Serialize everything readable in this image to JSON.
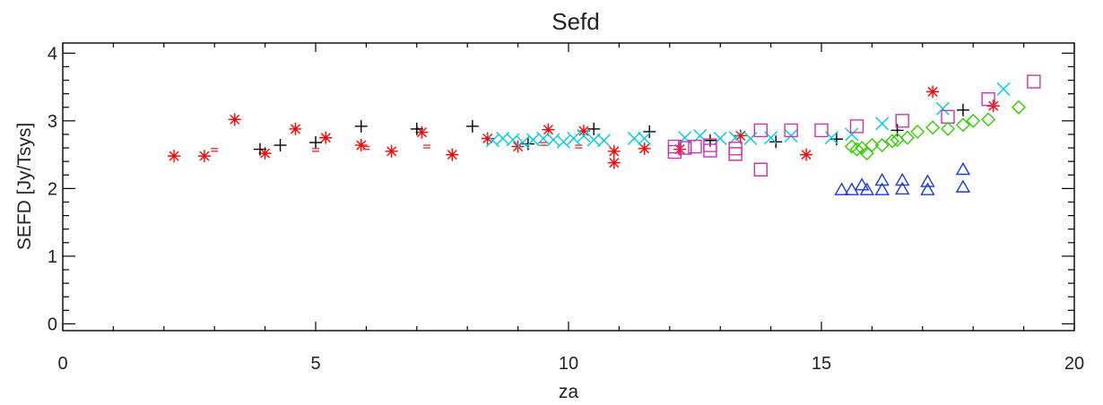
{
  "chart_data": {
    "type": "scatter",
    "title": "Sefd",
    "xlabel": "za",
    "ylabel": "SEFD [Jy/Tsys]",
    "xlim": [
      0,
      20
    ],
    "ylim": [
      -0.1,
      4.15
    ],
    "x_ticks": [
      "0",
      "5",
      "10",
      "15",
      "20"
    ],
    "y_ticks": [
      "0",
      "1",
      "2",
      "3",
      "4"
    ],
    "grid": false,
    "series": [
      {
        "marker": "asterisk",
        "color": "#ff0000",
        "points": [
          [
            2.2,
            2.48
          ],
          [
            2.8,
            2.48
          ],
          [
            3.4,
            3.02
          ],
          [
            4.0,
            2.52
          ],
          [
            4.6,
            2.88
          ],
          [
            5.2,
            2.75
          ],
          [
            5.9,
            2.64
          ],
          [
            6.5,
            2.55
          ],
          [
            7.1,
            2.83
          ],
          [
            7.7,
            2.5
          ],
          [
            8.4,
            2.74
          ],
          [
            9.0,
            2.62
          ],
          [
            9.6,
            2.87
          ],
          [
            10.3,
            2.85
          ],
          [
            10.9,
            2.38
          ],
          [
            10.9,
            2.55
          ],
          [
            11.5,
            2.59
          ],
          [
            12.2,
            2.58
          ],
          [
            13.4,
            2.78
          ],
          [
            14.7,
            2.5
          ],
          [
            17.2,
            3.43
          ],
          [
            18.4,
            3.22
          ]
        ]
      },
      {
        "marker": "plus",
        "color": "#000000",
        "points": [
          [
            3.9,
            2.58
          ],
          [
            4.3,
            2.64
          ],
          [
            5.0,
            2.68
          ],
          [
            5.9,
            2.92
          ],
          [
            7.0,
            2.88
          ],
          [
            8.1,
            2.92
          ],
          [
            9.2,
            2.66
          ],
          [
            10.5,
            2.88
          ],
          [
            11.6,
            2.84
          ],
          [
            12.8,
            2.71
          ],
          [
            14.1,
            2.69
          ],
          [
            15.3,
            2.73
          ],
          [
            16.5,
            2.86
          ],
          [
            17.8,
            3.16
          ]
        ]
      },
      {
        "marker": "dash",
        "color": "#e0303a",
        "points": [
          [
            3.0,
            2.57
          ],
          [
            5.0,
            2.57
          ],
          [
            6.0,
            2.6
          ],
          [
            7.2,
            2.62
          ],
          [
            9.5,
            2.66
          ],
          [
            10.2,
            2.62
          ]
        ]
      },
      {
        "marker": "x",
        "color": "#00c8e0",
        "points": [
          [
            8.5,
            2.71
          ],
          [
            8.7,
            2.74
          ],
          [
            8.9,
            2.72
          ],
          [
            9.1,
            2.68
          ],
          [
            9.3,
            2.72
          ],
          [
            9.5,
            2.74
          ],
          [
            9.7,
            2.72
          ],
          [
            9.9,
            2.69
          ],
          [
            10.1,
            2.74
          ],
          [
            10.3,
            2.78
          ],
          [
            10.5,
            2.72
          ],
          [
            10.7,
            2.71
          ],
          [
            11.3,
            2.74
          ],
          [
            11.5,
            2.74
          ],
          [
            12.3,
            2.75
          ],
          [
            12.6,
            2.78
          ],
          [
            13.0,
            2.74
          ],
          [
            13.3,
            2.75
          ],
          [
            13.6,
            2.74
          ],
          [
            14.0,
            2.75
          ],
          [
            14.4,
            2.78
          ],
          [
            15.2,
            2.75
          ],
          [
            15.6,
            2.8
          ],
          [
            16.2,
            2.96
          ],
          [
            17.4,
            3.18
          ],
          [
            18.6,
            3.47
          ]
        ]
      },
      {
        "marker": "square",
        "color": "#cc33aa",
        "points": [
          [
            12.1,
            2.54
          ],
          [
            12.1,
            2.62
          ],
          [
            12.3,
            2.6
          ],
          [
            12.5,
            2.62
          ],
          [
            12.8,
            2.56
          ],
          [
            12.8,
            2.64
          ],
          [
            13.3,
            2.51
          ],
          [
            13.3,
            2.59
          ],
          [
            13.8,
            2.28
          ],
          [
            13.8,
            2.86
          ],
          [
            14.4,
            2.86
          ],
          [
            15.0,
            2.86
          ],
          [
            15.7,
            2.92
          ],
          [
            16.6,
            3.0
          ],
          [
            17.5,
            3.06
          ],
          [
            18.3,
            3.32
          ],
          [
            19.2,
            3.58
          ]
        ]
      },
      {
        "marker": "diamond",
        "color": "#33cc00",
        "points": [
          [
            15.6,
            2.62
          ],
          [
            15.7,
            2.58
          ],
          [
            15.8,
            2.6
          ],
          [
            15.9,
            2.52
          ],
          [
            16.0,
            2.64
          ],
          [
            16.2,
            2.64
          ],
          [
            16.4,
            2.7
          ],
          [
            16.5,
            2.72
          ],
          [
            16.7,
            2.75
          ],
          [
            16.9,
            2.84
          ],
          [
            17.2,
            2.9
          ],
          [
            17.5,
            2.88
          ],
          [
            17.8,
            2.94
          ],
          [
            18.0,
            3.0
          ],
          [
            18.3,
            3.02
          ],
          [
            18.9,
            3.2
          ]
        ]
      },
      {
        "marker": "triangle",
        "color": "#1a3adc",
        "points": [
          [
            15.4,
            1.98
          ],
          [
            15.6,
            1.98
          ],
          [
            15.8,
            2.05
          ],
          [
            15.9,
            1.98
          ],
          [
            16.2,
            2.12
          ],
          [
            16.2,
            1.98
          ],
          [
            16.6,
            2.12
          ],
          [
            16.6,
            1.99
          ],
          [
            17.1,
            2.1
          ],
          [
            17.1,
            1.98
          ],
          [
            17.8,
            2.28
          ],
          [
            17.8,
            2.02
          ]
        ]
      }
    ]
  }
}
